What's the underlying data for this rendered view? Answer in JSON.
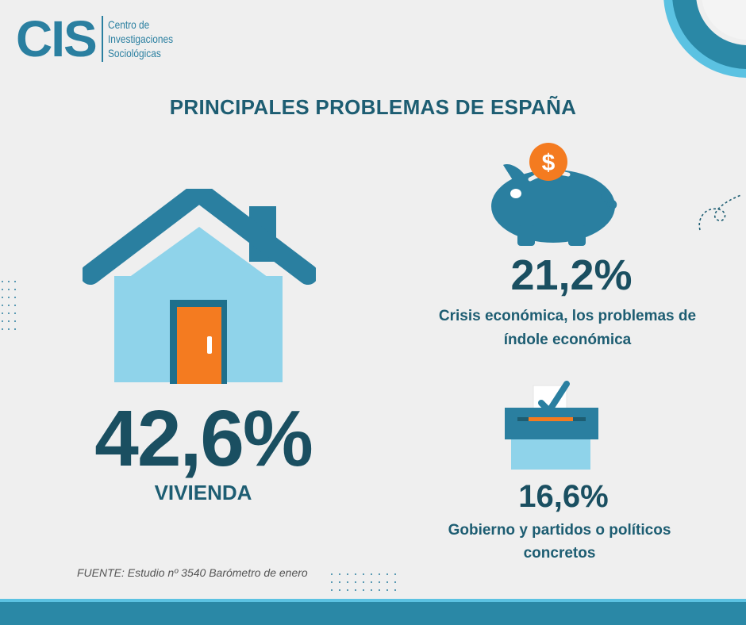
{
  "logo": {
    "letters": "CIS",
    "lines": [
      "Centro de",
      "Investigaciones",
      "Sociológicas"
    ]
  },
  "title": "PRINCIPALES PROBLEMAS DE ESPAÑA",
  "items": [
    {
      "value": "42,6%",
      "label": "VIVIENDA",
      "icon": "house-icon"
    },
    {
      "value": "21,2%",
      "label": "Crisis económica, los problemas de índole económica",
      "icon": "piggy-bank-icon"
    },
    {
      "value": "16,6%",
      "label": "Gobierno y partidos o políticos concretos",
      "icon": "ballot-box-icon"
    }
  ],
  "source": "FUENTE: Estudio nº 3540 Barómetro de enero",
  "colors": {
    "primary": "#2a7fa0",
    "dark_text": "#1a4f61",
    "light_blue": "#8fd3ea",
    "orange": "#f47b20",
    "background": "#efefef"
  }
}
